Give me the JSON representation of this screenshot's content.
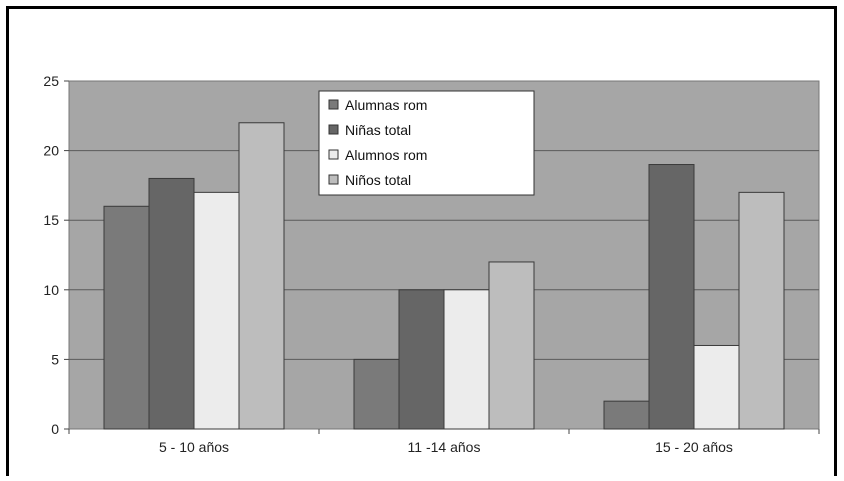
{
  "chart_data": {
    "type": "bar",
    "categories": [
      "5 - 10 años",
      "11 -14 años",
      "15 - 20 años"
    ],
    "series": [
      {
        "name": "Alumnas rom",
        "values": [
          16,
          5,
          2
        ],
        "color": "#7a7a7a"
      },
      {
        "name": "Niñas total",
        "values": [
          18,
          10,
          19
        ],
        "color": "#666666"
      },
      {
        "name": "Alumnos rom",
        "values": [
          17,
          10,
          6
        ],
        "color": "#ececec"
      },
      {
        "name": "Niños total",
        "values": [
          22,
          12,
          17
        ],
        "color": "#bdbdbd"
      }
    ],
    "ylim": [
      0,
      25
    ],
    "yticks": [
      0,
      5,
      10,
      15,
      20,
      25
    ],
    "grid": true,
    "plot_background": "#a6a6a6",
    "legend_position": "top-center"
  }
}
